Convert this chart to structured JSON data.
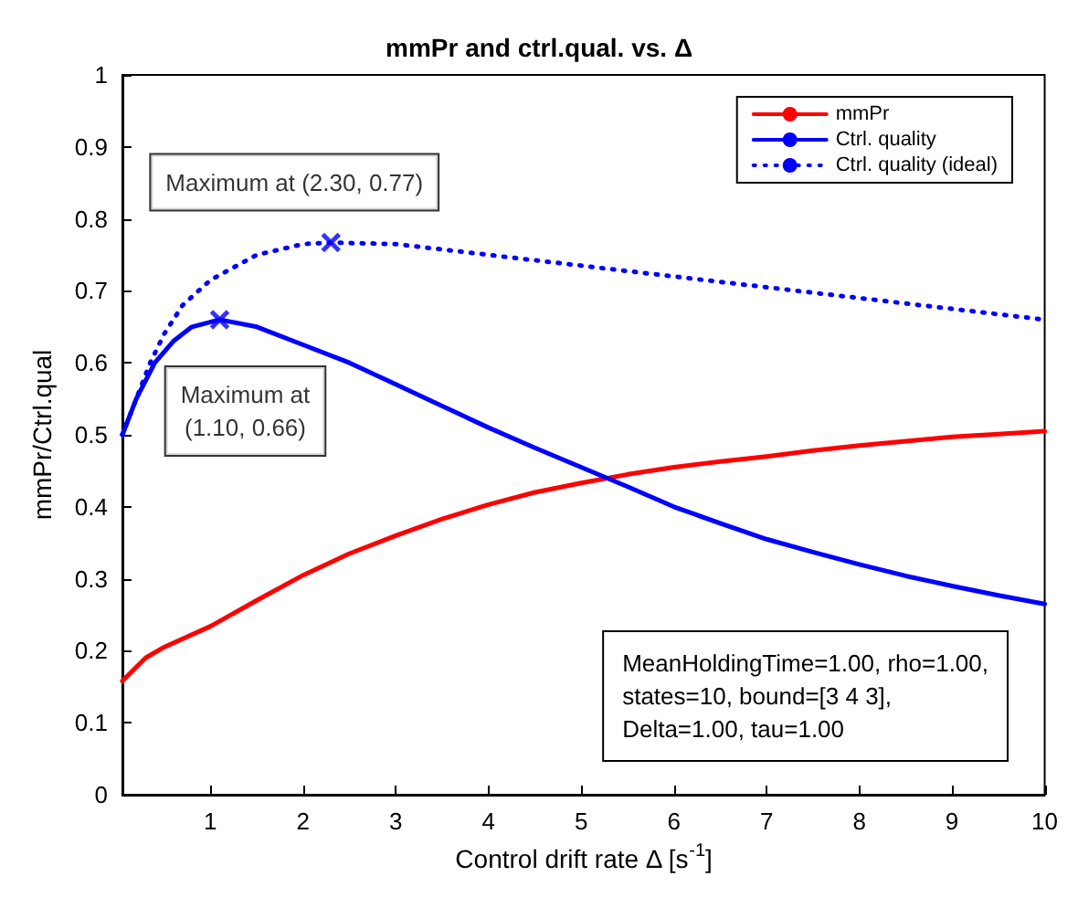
{
  "chart_data": {
    "type": "line",
    "title": "mmPr and ctrl.qual. vs. Δ",
    "xlabel": "Control drift rate Δ [s$^{-1}$]",
    "ylabel": "mmPr/Ctrl.qual",
    "xlim": [
      0.05,
      10
    ],
    "xticks": [
      1,
      2,
      3,
      4,
      5,
      6,
      7,
      8,
      9,
      10
    ],
    "ylim": [
      0,
      1
    ],
    "yticks": [
      0,
      0.1,
      0.2,
      0.3,
      0.4,
      0.5,
      0.6,
      0.7,
      0.8,
      0.9,
      1
    ],
    "grid": false,
    "legend": "top right",
    "marker": "none",
    "series": [
      {
        "name": "mmPr",
        "color": "#ff0000",
        "line_style": "solid",
        "x": [
          0.05,
          0.3,
          0.5,
          1,
          1.5,
          2,
          2.5,
          3,
          3.5,
          4,
          4.5,
          5,
          5.5,
          6,
          6.5,
          7,
          7.5,
          8,
          8.5,
          9,
          9.5,
          10
        ],
        "values": [
          0.158,
          0.19,
          0.205,
          0.234,
          0.27,
          0.305,
          0.335,
          0.36,
          0.383,
          0.403,
          0.42,
          0.433,
          0.445,
          0.455,
          0.463,
          0.47,
          0.478,
          0.485,
          0.491,
          0.497,
          0.501,
          0.505
        ]
      },
      {
        "name": "Ctrl. quality",
        "color": "#0000ff",
        "line_style": "solid",
        "x": [
          0.05,
          0.2,
          0.4,
          0.6,
          0.8,
          1.1,
          1.5,
          2,
          2.5,
          3,
          3.5,
          4,
          4.5,
          5,
          5.5,
          6,
          6.5,
          7,
          7.5,
          8,
          8.5,
          9,
          9.5,
          10
        ],
        "values": [
          0.5,
          0.55,
          0.6,
          0.63,
          0.65,
          0.66,
          0.65,
          0.625,
          0.6,
          0.57,
          0.54,
          0.51,
          0.482,
          0.455,
          0.428,
          0.4,
          0.377,
          0.355,
          0.337,
          0.32,
          0.304,
          0.29,
          0.277,
          0.265
        ]
      },
      {
        "name": "Ctrl. quality (ideal)",
        "color": "#0000ff",
        "line_style": "dotted",
        "x": [
          0.05,
          0.2,
          0.35,
          0.5,
          0.7,
          1,
          1.5,
          2,
          2.3,
          3,
          4,
          5,
          6,
          7,
          8,
          9,
          10
        ],
        "values": [
          0.5,
          0.55,
          0.6,
          0.64,
          0.68,
          0.715,
          0.75,
          0.765,
          0.767,
          0.765,
          0.75,
          0.735,
          0.72,
          0.705,
          0.69,
          0.675,
          0.66
        ]
      }
    ],
    "annotations": [
      {
        "text": "Maximum at\n(1.10, 0.66)",
        "x": 1.1,
        "y": 0.66
      },
      {
        "text": "Maximum at (2.30, 0.77)",
        "x": 2.3,
        "y": 0.767
      },
      "MeanHoldingTime=1.00, rho=1.00,\nstates=10, bound=[3 4 3],\nDelta=1.00, tau=1.00"
    ]
  }
}
